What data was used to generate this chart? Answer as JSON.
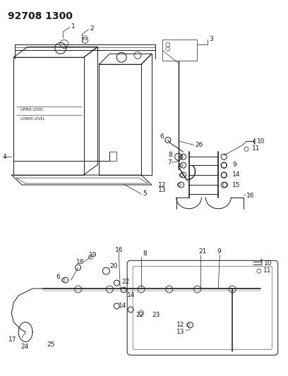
{
  "title": "92708 1300",
  "bg": "#ffffff",
  "lc": "#1a1a1a",
  "fig_w": 4.08,
  "fig_h": 5.33,
  "dpi": 100,
  "fs": 6.5,
  "fs_title": 10
}
